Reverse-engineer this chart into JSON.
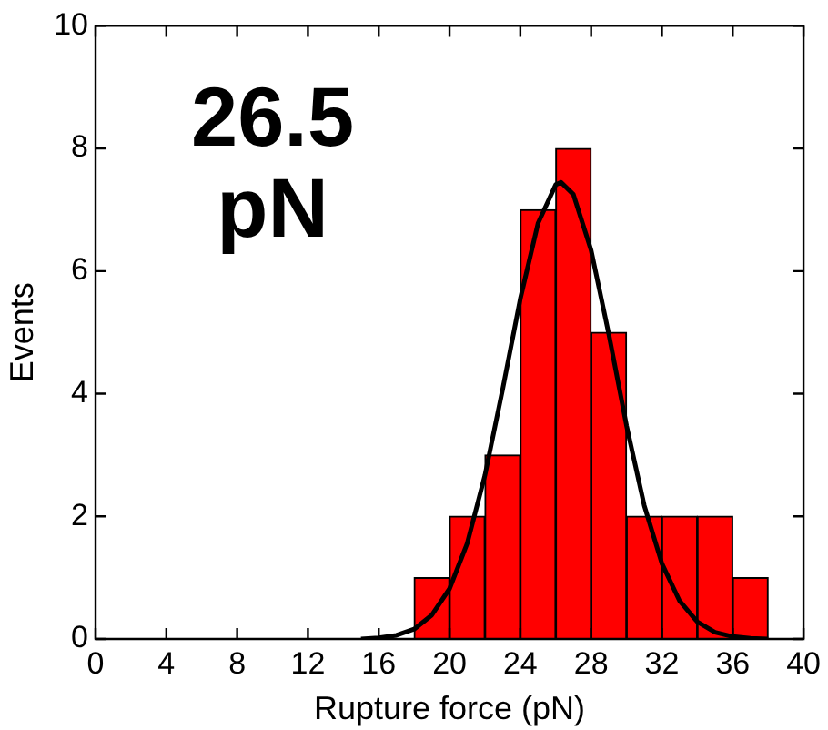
{
  "chart_data": {
    "type": "histogram",
    "xlabel": "Rupture force (pN)",
    "ylabel": "Events",
    "bins": [
      18,
      20,
      22,
      24,
      26,
      28,
      30,
      32,
      34,
      36,
      38
    ],
    "values": [
      1,
      2,
      3,
      7,
      8,
      5,
      2,
      2,
      2,
      1
    ],
    "color": "#ff0000",
    "series": [
      {
        "type": "line",
        "color": "#000000",
        "x": [
          15,
          16,
          17,
          18,
          19,
          20,
          21,
          22,
          23,
          24,
          25,
          26,
          26.3,
          27,
          28,
          29,
          30,
          31,
          32,
          33,
          34,
          35,
          36,
          37,
          38
        ],
        "values": [
          0,
          0.02,
          0.06,
          0.16,
          0.39,
          0.82,
          1.56,
          2.67,
          4.07,
          5.55,
          6.78,
          7.41,
          7.45,
          7.25,
          6.34,
          4.97,
          3.48,
          2.18,
          1.23,
          0.62,
          0.28,
          0.11,
          0.04,
          0.01,
          0
        ]
      }
    ],
    "xlim": [
      0,
      40
    ],
    "xticks": [
      0,
      4,
      8,
      12,
      16,
      20,
      24,
      28,
      32,
      36,
      40
    ],
    "ylim": [
      0,
      10
    ],
    "yticks": [
      0,
      2,
      4,
      6,
      8,
      10
    ],
    "annotations": [
      "26.5\npN"
    ],
    "grid": false,
    "legend": false,
    "marker": "none",
    "line_style": "solid"
  }
}
